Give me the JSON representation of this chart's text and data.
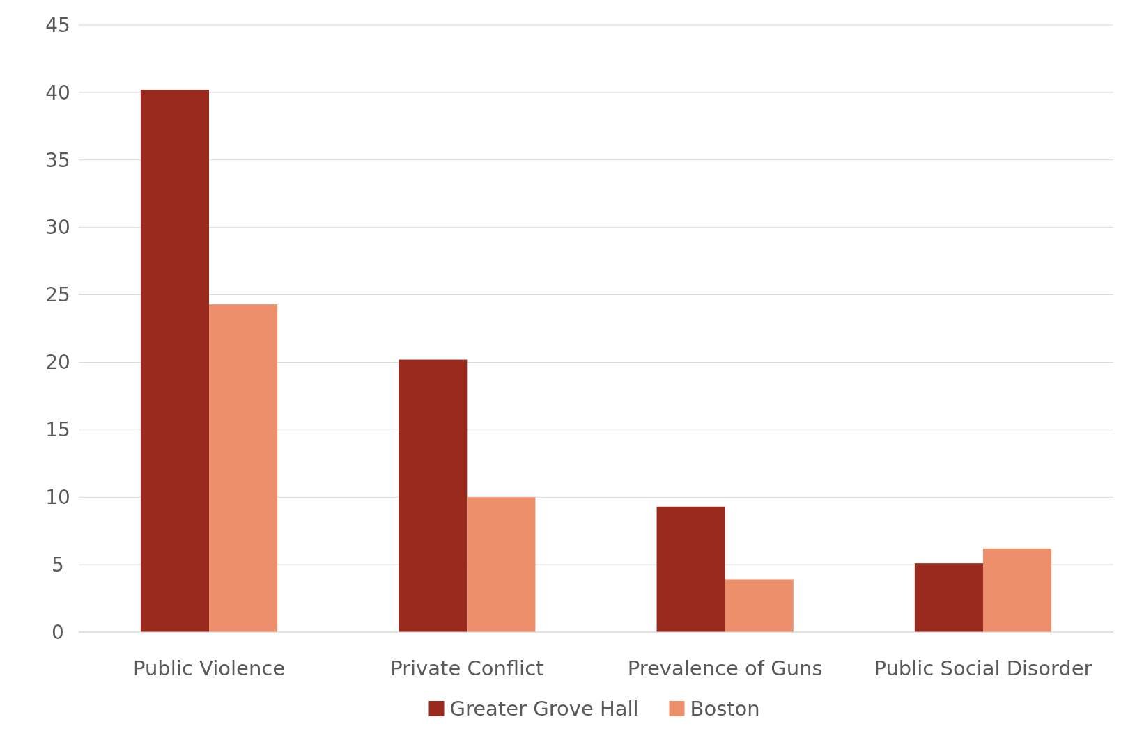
{
  "chart_data": {
    "type": "bar",
    "categories": [
      "Public Violence",
      "Private Conflict",
      "Prevalence of Guns",
      "Public Social Disorder"
    ],
    "series": [
      {
        "name": "Greater Grove Hall",
        "color": "#9b2a1e",
        "values": [
          40.2,
          20.2,
          9.3,
          5.1
        ]
      },
      {
        "name": "Boston",
        "color": "#ee8f6c",
        "values": [
          24.3,
          10,
          3.9,
          6.2
        ]
      }
    ],
    "ylim": [
      0,
      45
    ],
    "yticks": [
      0,
      5,
      10,
      15,
      20,
      25,
      30,
      35,
      40,
      45
    ],
    "grid": "y",
    "legend": "bottom"
  }
}
